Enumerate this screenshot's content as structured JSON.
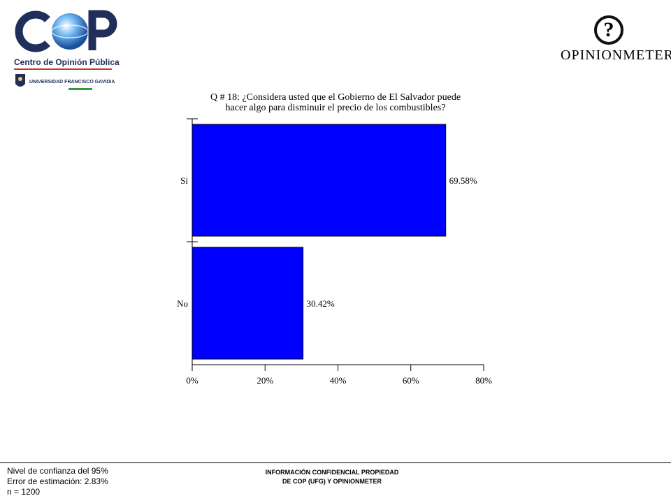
{
  "logos": {
    "cop_letters": "COP",
    "cop_subtitle": "Centro de Opinión Pública",
    "university": "UNIVERSIDAD FRANCISCO GAVIDIA",
    "ufg_short": "UFG",
    "opinionmeter_mark": "?",
    "opinionmeter_name": "OPINIONMETER"
  },
  "title_lines": [
    "Q # 18: ¿Considera usted que el Gobierno de El Salvador puede",
    "hacer algo para disminuir el precio de los combustibles?"
  ],
  "chart_data": {
    "type": "bar",
    "orientation": "horizontal",
    "title": "Q # 18: ¿Considera usted que el Gobierno de El Salvador puede hacer algo para disminuir el precio de los combustibles?",
    "categories": [
      "Si",
      "No"
    ],
    "values": [
      69.58,
      30.42
    ],
    "value_labels": [
      "69.58%",
      "30.42%"
    ],
    "xlim": [
      0,
      80
    ],
    "xticks": [
      0,
      20,
      40,
      60,
      80
    ],
    "xtick_labels": [
      "0%",
      "20%",
      "40%",
      "60%",
      "80%"
    ],
    "bar_color": "#0000ff",
    "grid": false,
    "legend": "none"
  },
  "footer": {
    "left_lines": [
      "Nivel de confianza del 95%",
      "Error de estimación: 2.83%",
      "n = 1200"
    ],
    "center_lines": [
      "INFORMACIÓN CONFIDENCIAL PROPIEDAD",
      "DE COP (UFG) Y OPINIONMETER"
    ]
  }
}
